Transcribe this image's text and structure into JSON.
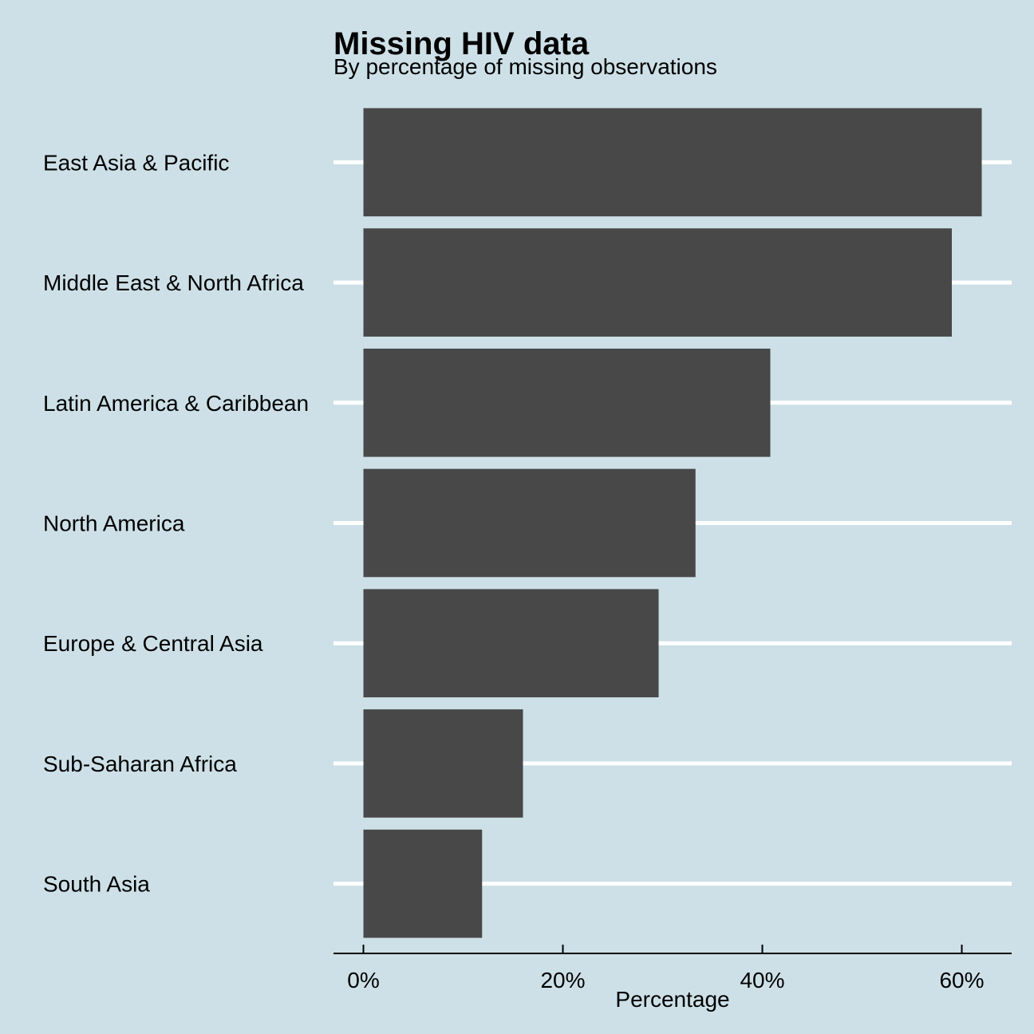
{
  "chart_data": {
    "type": "bar",
    "orientation": "horizontal",
    "title": "Missing HIV data",
    "subtitle": "By percentage of missing observations",
    "xlabel": "Percentage",
    "ylabel": "",
    "categories": [
      "East Asia & Pacific",
      "Middle East & North Africa",
      "Latin America & Caribbean",
      "North America",
      "Europe & Central Asia",
      "Sub-Saharan Africa",
      "South Asia"
    ],
    "values": [
      62,
      59,
      40.8,
      33.3,
      29.6,
      16,
      11.9
    ],
    "xlim": [
      -3,
      65
    ],
    "ticks": [
      0,
      20,
      40,
      60
    ],
    "tick_labels": [
      "0%",
      "20%",
      "40%",
      "60%"
    ],
    "grid": "horizontal lines at categories",
    "legend": "none",
    "colors": {
      "background": "#cde0e7",
      "bar": "#484848",
      "grid": "#ffffff",
      "axis": "#000000"
    }
  }
}
